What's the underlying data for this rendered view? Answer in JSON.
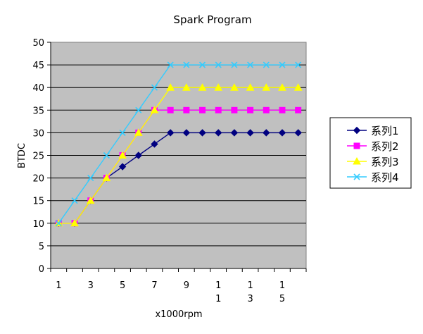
{
  "chart_data": {
    "type": "line",
    "title": "Spark Program",
    "xlabel": "x1000rpm",
    "ylabel": "BTDC",
    "x": [
      1,
      2,
      3,
      4,
      5,
      6,
      7,
      8,
      9,
      10,
      11,
      12,
      13,
      14,
      15,
      16
    ],
    "x_tick_labels": [
      {
        "x": 1,
        "lines": [
          "1"
        ]
      },
      {
        "x": 3,
        "lines": [
          "3"
        ]
      },
      {
        "x": 5,
        "lines": [
          "5"
        ]
      },
      {
        "x": 7,
        "lines": [
          "7"
        ]
      },
      {
        "x": 9,
        "lines": [
          "9"
        ]
      },
      {
        "x": 11,
        "lines": [
          "1",
          "1"
        ]
      },
      {
        "x": 13,
        "lines": [
          "1",
          "3"
        ]
      },
      {
        "x": 15,
        "lines": [
          "1",
          "5"
        ]
      }
    ],
    "ylim": [
      0,
      50
    ],
    "y_ticks": [
      0,
      5,
      10,
      15,
      20,
      25,
      30,
      35,
      40,
      45,
      50
    ],
    "grid": "horizontal",
    "plot_background": "#c0c0c0",
    "legend_position": "right",
    "series": [
      {
        "name": "系列1",
        "color": "#000080",
        "marker": "diamond",
        "values": [
          10,
          10,
          15,
          20,
          22.5,
          25,
          27.5,
          30,
          30,
          30,
          30,
          30,
          30,
          30,
          30,
          30
        ]
      },
      {
        "name": "系列2",
        "color": "#ff00ff",
        "marker": "square",
        "values": [
          10,
          10,
          15,
          20,
          25,
          30,
          35,
          35,
          35,
          35,
          35,
          35,
          35,
          35,
          35,
          35
        ]
      },
      {
        "name": "系列3",
        "color": "#ffff00",
        "marker": "triangle",
        "values": [
          10,
          10,
          15,
          20,
          25,
          30,
          35,
          40,
          40,
          40,
          40,
          40,
          40,
          40,
          40,
          40
        ]
      },
      {
        "name": "系列4",
        "color": "#33ccff",
        "marker": "x",
        "values": [
          10,
          15,
          20,
          25,
          30,
          35,
          40,
          45,
          45,
          45,
          45,
          45,
          45,
          45,
          45,
          45
        ]
      }
    ]
  }
}
